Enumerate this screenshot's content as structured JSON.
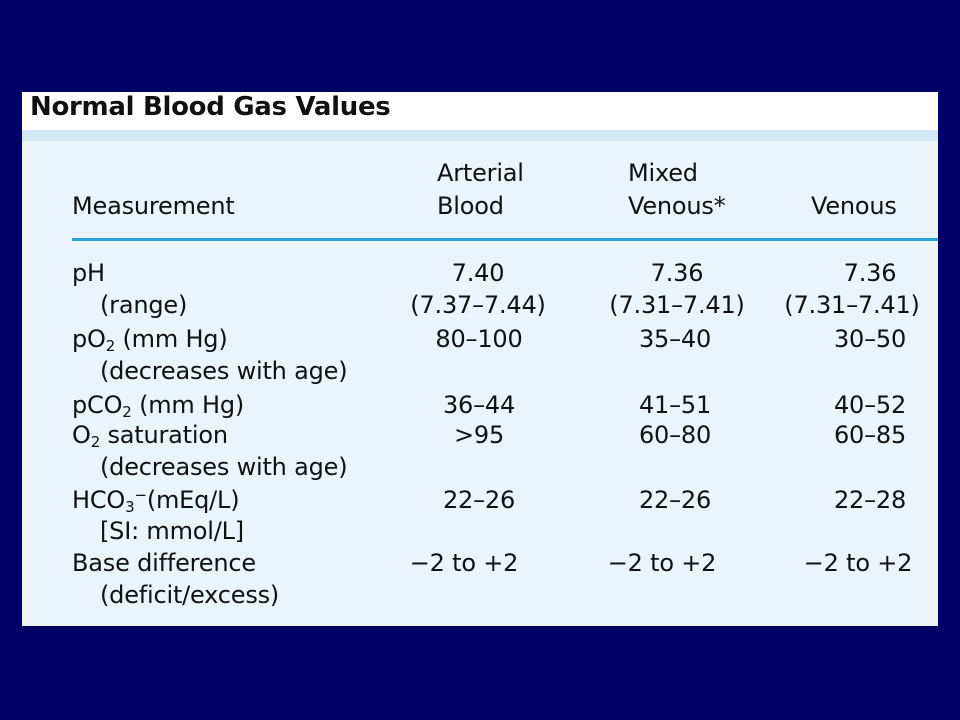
{
  "title": "Normal Blood Gas Values",
  "headers": {
    "measurement": "Measurement",
    "arterial_1": "Arterial",
    "arterial_2": "Blood",
    "mixed_1": "Mixed",
    "mixed_2": "Venous*",
    "venous": "Venous"
  },
  "rows": [
    {
      "label": "pH",
      "arterial": "7.40",
      "mixed": "7.36",
      "venous": "7.36"
    },
    {
      "label": "(range)",
      "arterial": "(7.37–7.44)",
      "mixed": "(7.31–7.41)",
      "venous": "(7.31–7.41)"
    },
    {
      "label_pre": "pO",
      "label_sub": "2",
      "label_post": " (mm Hg)",
      "arterial": "80–100",
      "mixed": "35–40",
      "venous": "30–50"
    },
    {
      "label": "(decreases with age)"
    },
    {
      "label_pre": "pCO",
      "label_sub": "2",
      "label_post": " (mm Hg)",
      "arterial": "36–44",
      "mixed": "41–51",
      "venous": "40–52"
    },
    {
      "label_pre": "O",
      "label_sub": "2",
      "label_post": " saturation",
      "arterial": ">95",
      "mixed": "60–80",
      "venous": "60–85"
    },
    {
      "label": "(decreases with age)"
    },
    {
      "label_pre": "HCO",
      "label_sub": "3",
      "label_sup": "−",
      "label_post": "(mEq/L)",
      "arterial": "22–26",
      "mixed": "22–26",
      "venous": "22–28"
    },
    {
      "label": "[SI: mmol/L]"
    },
    {
      "label": "Base difference",
      "arterial": "−2 to +2",
      "mixed": "−2 to +2",
      "venous": "−2 to +2"
    },
    {
      "label": "(deficit/excess)"
    }
  ]
}
